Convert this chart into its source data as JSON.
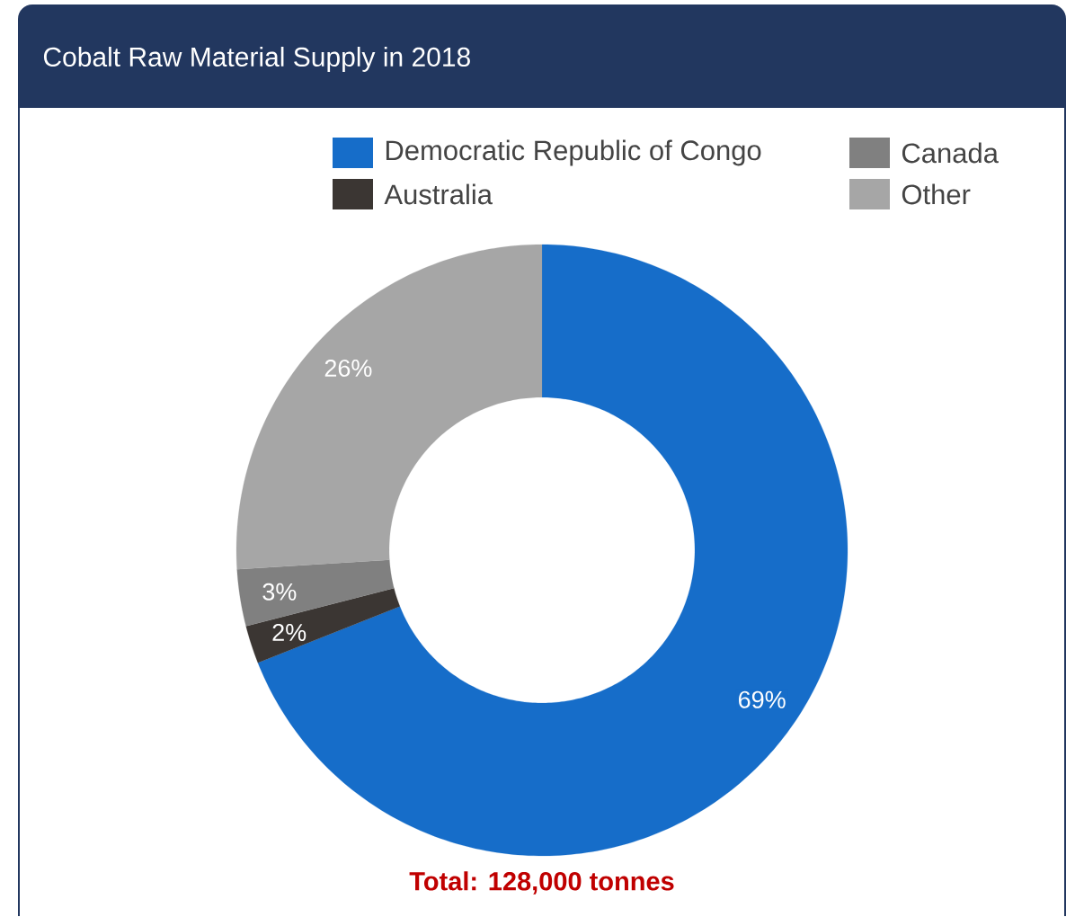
{
  "chart_data": {
    "type": "donut",
    "title": "Cobalt Raw Material Supply in 2018",
    "categories": [
      "Democratic Republic of Congo",
      "Australia",
      "Canada",
      "Other"
    ],
    "values": [
      69,
      2,
      3,
      26
    ],
    "colors": [
      "#166dc9",
      "#3b3633",
      "#808080",
      "#a6a6a6"
    ],
    "value_labels": [
      "69%",
      "2%",
      "3%",
      "26%"
    ],
    "legend": "top",
    "annotations": [
      "Total: 128,000 tonnes"
    ]
  }
}
